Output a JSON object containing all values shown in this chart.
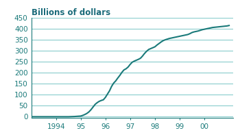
{
  "title": "Billions of dollars",
  "x_values": [
    1993.0,
    1993.25,
    1993.5,
    1993.75,
    1994.0,
    1994.25,
    1994.5,
    1994.75,
    1995.0,
    1995.083,
    1995.167,
    1995.25,
    1995.333,
    1995.417,
    1995.5,
    1995.583,
    1995.667,
    1995.75,
    1995.833,
    1995.917,
    1996.0,
    1996.083,
    1996.167,
    1996.25,
    1996.333,
    1996.417,
    1996.5,
    1996.583,
    1996.667,
    1996.75,
    1996.833,
    1996.917,
    1997.0,
    1997.083,
    1997.167,
    1997.25,
    1997.333,
    1997.417,
    1997.5,
    1997.583,
    1997.667,
    1997.75,
    1997.833,
    1997.917,
    1998.0,
    1998.083,
    1998.167,
    1998.25,
    1998.333,
    1998.417,
    1998.5,
    1998.583,
    1998.667,
    1998.75,
    1998.833,
    1998.917,
    1999.0,
    1999.083,
    1999.167,
    1999.25,
    1999.333,
    1999.417,
    1999.5,
    1999.583,
    1999.667,
    1999.75,
    1999.833,
    1999.917,
    2000.0,
    2000.083,
    2000.167,
    2000.25,
    2000.333,
    2000.417,
    2000.5,
    2000.583,
    2000.667,
    2000.75,
    2000.833,
    2000.917,
    2001.0
  ],
  "y_values": [
    0,
    0,
    0,
    0,
    0,
    0,
    0,
    1,
    3,
    6,
    10,
    15,
    22,
    32,
    44,
    56,
    64,
    70,
    74,
    77,
    88,
    103,
    118,
    138,
    153,
    163,
    176,
    188,
    202,
    213,
    218,
    226,
    238,
    248,
    253,
    257,
    261,
    266,
    276,
    288,
    298,
    306,
    310,
    314,
    318,
    326,
    333,
    340,
    346,
    350,
    353,
    356,
    358,
    360,
    362,
    364,
    366,
    368,
    370,
    372,
    374,
    378,
    383,
    386,
    388,
    390,
    393,
    396,
    398,
    400,
    402,
    404,
    406,
    407,
    408,
    409,
    410,
    411,
    412,
    413,
    415
  ],
  "line_color": "#1a7a7a",
  "background_color": "#ffffff",
  "grid_color": "#88cccc",
  "title_color": "#1a6b7a",
  "tick_color": "#1a7a7a",
  "ylim": [
    -5,
    450
  ],
  "xlim": [
    1993.0,
    2001.15
  ],
  "yticks": [
    0,
    50,
    100,
    150,
    200,
    250,
    300,
    350,
    400,
    450
  ],
  "xtick_positions": [
    1994,
    1995,
    1996,
    1997,
    1998,
    1999,
    2000
  ],
  "xtick_labels": [
    "1994",
    "95",
    "96",
    "97",
    "98",
    "99",
    "00"
  ],
  "title_fontsize": 8.5,
  "tick_fontsize": 7.5
}
